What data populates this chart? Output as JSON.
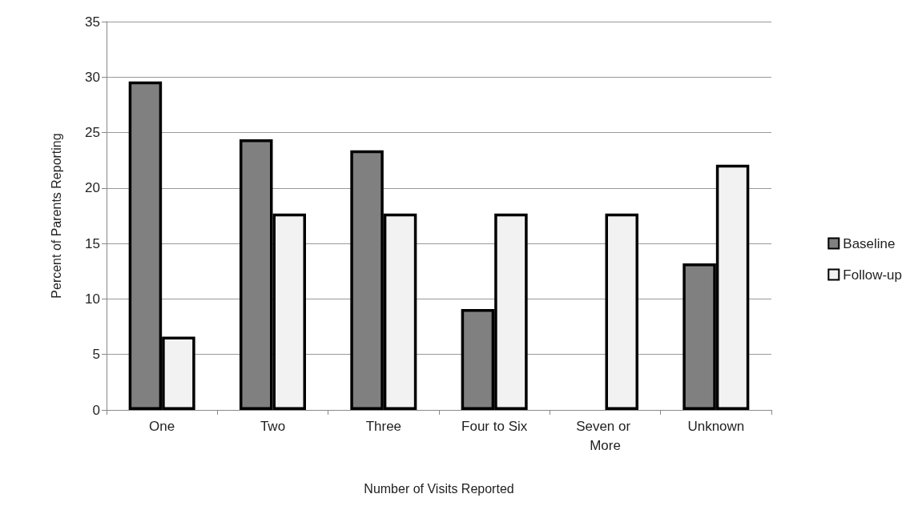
{
  "chart_data": {
    "type": "bar",
    "xlabel": "Number of Visits Reported",
    "ylabel": "Percent of Parents Reporting",
    "categories": [
      "One",
      "Two",
      "Three",
      "Four to Six",
      "Seven or More",
      "Unknown"
    ],
    "series": [
      {
        "name": "Baseline",
        "color": "#808080",
        "values": [
          29.6,
          24.4,
          23.4,
          9.1,
          null,
          13.2
        ]
      },
      {
        "name": "Follow-up",
        "color": "#f2f2f2",
        "values": [
          6.6,
          17.7,
          17.7,
          17.7,
          17.7,
          22.1
        ]
      }
    ],
    "ylim": [
      0,
      35
    ],
    "yticks": [
      0,
      5,
      10,
      15,
      20,
      25,
      30,
      35
    ],
    "grid": "y",
    "legend": "right"
  }
}
